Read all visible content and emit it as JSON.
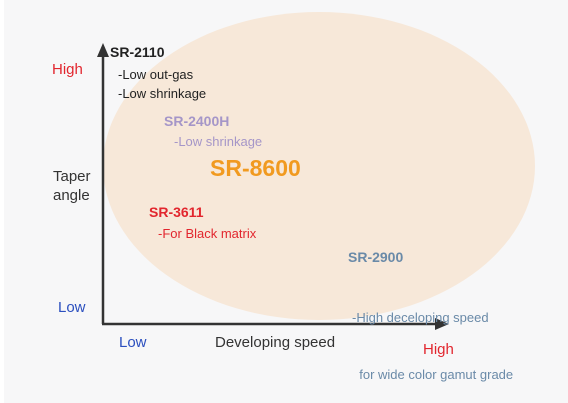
{
  "axes": {
    "y": {
      "title": "Taper angle",
      "high_label": "High",
      "low_label": "Low"
    },
    "x": {
      "title": "Developing speed",
      "low_label": "Low",
      "high_label": "High"
    }
  },
  "products": [
    {
      "name": "SR-2110",
      "features": [
        "-Low out-gas",
        "-Low shrinkage"
      ]
    },
    {
      "name": "SR-2400H",
      "features": [
        "-Low shrinkage"
      ]
    },
    {
      "name": "SR-8600",
      "features": []
    },
    {
      "name": "SR-3611",
      "features": [
        "-For Black matrix"
      ]
    },
    {
      "name": "SR-2900",
      "features": [
        "-High deceloping speed",
        "  for wide color gamut grade"
      ]
    }
  ],
  "colors": {
    "panel_bg": "#f7f7f8",
    "ellipse_fill": "#f7e8d9",
    "axis": "#333333",
    "high": "#e2262e",
    "low": "#2b4fbf",
    "sr2400h": "#a596c8",
    "sr8600": "#f19a20",
    "sr2900": "#6a8aa8"
  }
}
